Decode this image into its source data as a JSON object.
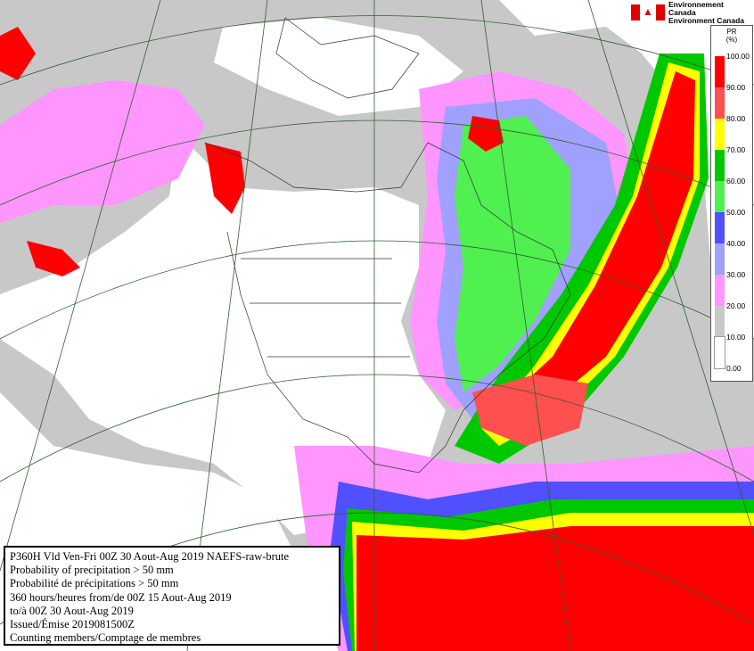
{
  "logo": {
    "line1": "Environnement Canada",
    "line2": "Environment Canada",
    "flag_icon": "canada-flag-icon"
  },
  "legend": {
    "title_line1": "PR",
    "title_line2": "(%)",
    "levels": [
      {
        "label": "100.00",
        "color": "#ff0000"
      },
      {
        "label": "90.00",
        "color": "#ff5050"
      },
      {
        "label": "80.00",
        "color": "#ffff00"
      },
      {
        "label": "70.00",
        "color": "#00c800"
      },
      {
        "label": "60.00",
        "color": "#50f050"
      },
      {
        "label": "50.00",
        "color": "#5050ff"
      },
      {
        "label": "40.00",
        "color": "#a0a0ff"
      },
      {
        "label": "30.00",
        "color": "#ff96ff"
      },
      {
        "label": "20.00",
        "color": "#c8c8c8"
      },
      {
        "label": "10.00",
        "color": "#ffffff"
      },
      {
        "label": "0.00",
        "color": null
      }
    ]
  },
  "info": {
    "line1": "P360H Vld Ven-Fri 00Z 30 Aout-Aug 2019 NAEFS-raw-brute",
    "line2": "Probability of precipitation > 50 mm",
    "line3": "Probabilité de précipitations > 50 mm",
    "line4": "360 hours/heures from/de 00Z 15 Aout-Aug 2019",
    "line5": "to/à 00Z 30 Aout-Aug 2019",
    "line6": "Issued/Émise 2019081500Z",
    "line7": "Counting members/Comptage de membres"
  }
}
